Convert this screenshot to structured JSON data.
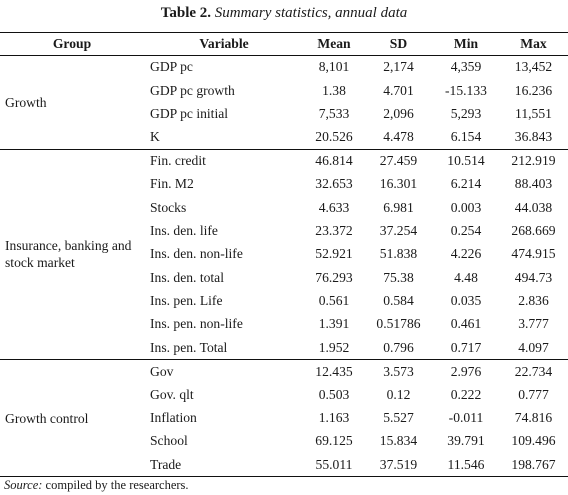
{
  "caption": {
    "label": "Table 2.",
    "title": "Summary statistics, annual data"
  },
  "headers": [
    "Group",
    "Variable",
    "Mean",
    "SD",
    "Min",
    "Max"
  ],
  "groups": [
    {
      "name": "Growth",
      "rows": [
        [
          "GDP pc",
          "8,101",
          "2,174",
          "4,359",
          "13,452"
        ],
        [
          "GDP pc growth",
          "1.38",
          "4.701",
          "-15.133",
          "16.236"
        ],
        [
          "GDP pc initial",
          "7,533",
          "2,096",
          "5,293",
          "11,551"
        ],
        [
          "K",
          "20.526",
          "4.478",
          "6.154",
          "36.843"
        ]
      ]
    },
    {
      "name": "Insurance, banking and stock market",
      "rows": [
        [
          "Fin. credit",
          "46.814",
          "27.459",
          "10.514",
          "212.919"
        ],
        [
          "Fin. M2",
          "32.653",
          "16.301",
          "6.214",
          "88.403"
        ],
        [
          "Stocks",
          "4.633",
          "6.981",
          "0.003",
          "44.038"
        ],
        [
          "Ins. den. life",
          "23.372",
          "37.254",
          "0.254",
          "268.669"
        ],
        [
          "Ins. den. non-life",
          "52.921",
          "51.838",
          "4.226",
          "474.915"
        ],
        [
          "Ins. den. total",
          "76.293",
          "75.38",
          "4.48",
          "494.73"
        ],
        [
          "Ins. pen. Life",
          "0.561",
          "0.584",
          "0.035",
          "2.836"
        ],
        [
          "Ins. pen. non-life",
          "1.391",
          "0.51786",
          "0.461",
          "3.777"
        ],
        [
          "Ins. pen. Total",
          "1.952",
          "0.796",
          "0.717",
          "4.097"
        ]
      ]
    },
    {
      "name": "Growth control",
      "rows": [
        [
          "Gov",
          "12.435",
          "3.573",
          "2.976",
          "22.734"
        ],
        [
          "Gov. qlt",
          "0.503",
          "0.12",
          "0.222",
          "0.777"
        ],
        [
          "Inflation",
          "1.163",
          "5.527",
          "-0.011",
          "74.816"
        ],
        [
          "School",
          "69.125",
          "15.834",
          "39.791",
          "109.496"
        ],
        [
          "Trade",
          "55.011",
          "37.519",
          "11.546",
          "198.767"
        ]
      ]
    }
  ],
  "source": {
    "label": "Source:",
    "text": " compiled by the researchers."
  }
}
